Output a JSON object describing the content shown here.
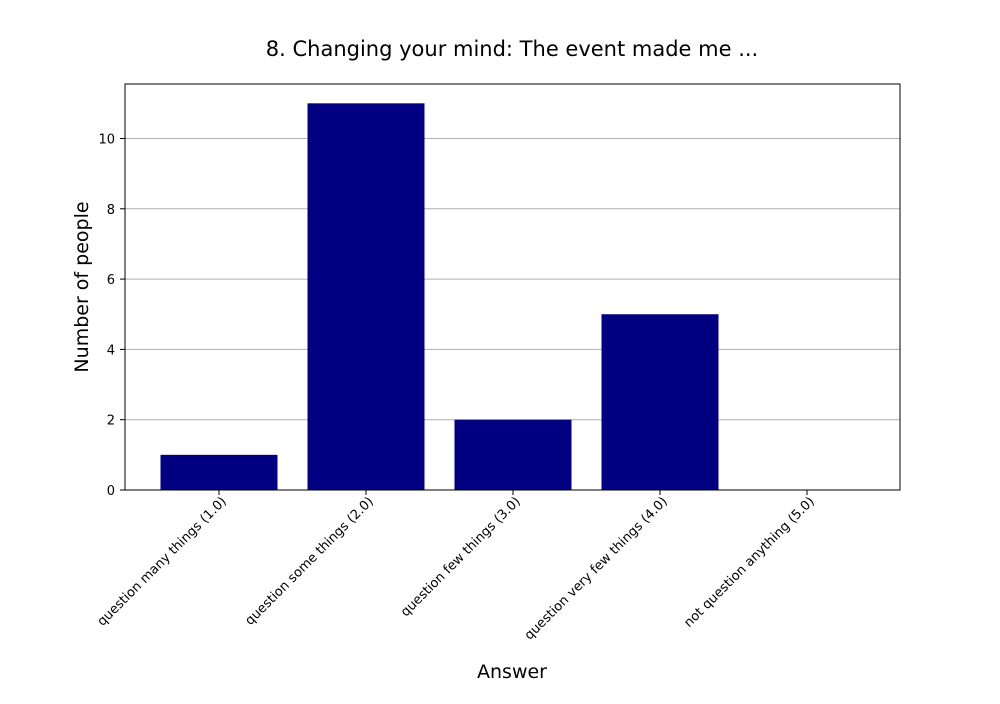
{
  "chart_data": {
    "type": "bar",
    "title": "8. Changing your mind: The event made me ...",
    "xlabel": "Answer",
    "ylabel": "Number of people",
    "categories": [
      "question many things (1.0)",
      "question some things (2.0)",
      "question few things (3.0)",
      "question very few things (4.0)",
      "not question anything (5.0)"
    ],
    "values": [
      1,
      11,
      2,
      5,
      0
    ],
    "ylim": [
      0,
      11.55
    ],
    "yticks": [
      0,
      2,
      4,
      6,
      8,
      10
    ],
    "grid": "horizontal",
    "bar_color": "#000080",
    "grid_color": "#b0b0b0"
  }
}
